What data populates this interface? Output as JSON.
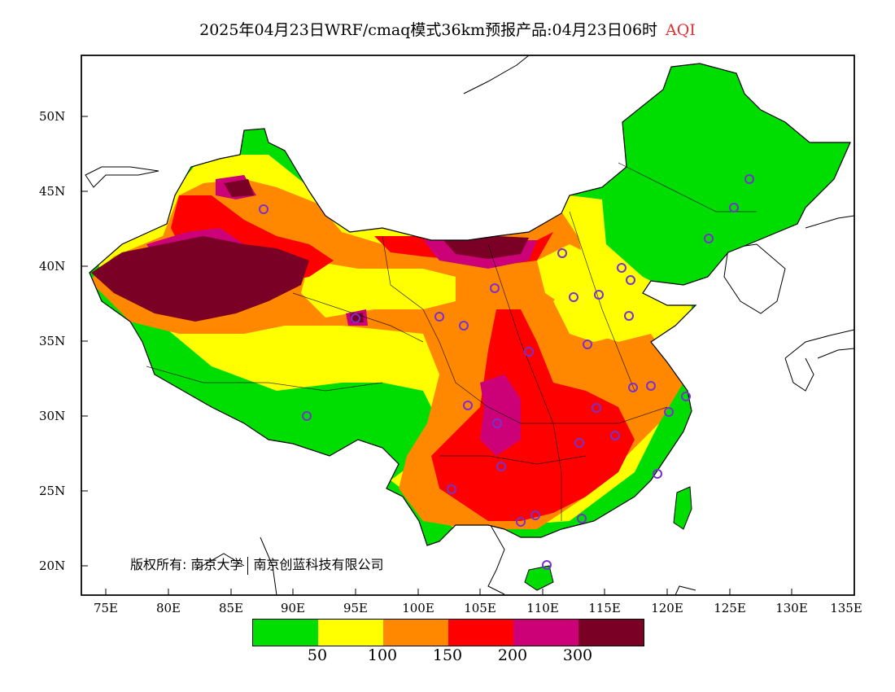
{
  "title": {
    "main": "2025年04月23日WRF/cmaq模式36km预报产品:04月23日06时",
    "variable": "AQI"
  },
  "map": {
    "lat_labels": [
      "50N",
      "45N",
      "40N",
      "35N",
      "30N",
      "25N",
      "20N"
    ],
    "lon_labels": [
      "75E",
      "80E",
      "85E",
      "90E",
      "95E",
      "100E",
      "105E",
      "110E",
      "115E",
      "120E",
      "125E",
      "130E",
      "135E"
    ],
    "extent": {
      "lon_min": 73,
      "lon_max": 135,
      "lat_min": 18,
      "lat_max": 54
    },
    "copyright_owner": "版权所有: 南京大学",
    "copyright_partner": "南京创蓝科技有限公司",
    "station_marker_color": "#7a2fd0"
  },
  "legend": {
    "colors": [
      "#00dd00",
      "#ffff00",
      "#ff8800",
      "#ff0000",
      "#cc0077",
      "#7a0026"
    ],
    "ticks": [
      "50",
      "100",
      "150",
      "200",
      "300"
    ]
  }
}
